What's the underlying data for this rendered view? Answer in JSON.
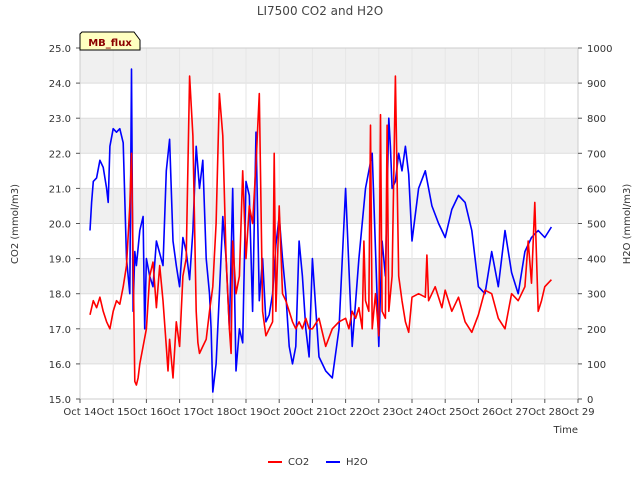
{
  "chart_data": {
    "type": "line",
    "title": "LI7500 CO2 and H2O",
    "xlabel": "Time",
    "ylabel_left": "CO2 (mmol/m3)",
    "ylabel_right": "H2O (mmol/m3)",
    "xlim": [
      0,
      15
    ],
    "ylim_left": [
      15.0,
      25.0
    ],
    "ylim_right": [
      0,
      1000
    ],
    "x_ticks": [
      0,
      1,
      2,
      3,
      4,
      5,
      6,
      7,
      8,
      9,
      10,
      11,
      12,
      13,
      14,
      15
    ],
    "x_tick_labels": [
      "Oct 14",
      "Oct 15",
      "Oct 16",
      "Oct 17",
      "Oct 18",
      "Oct 19",
      "Oct 20",
      "Oct 21",
      "Oct 22",
      "Oct 23",
      "Oct 24",
      "Oct 25",
      "Oct 26",
      "Oct 27",
      "Oct 28",
      "Oct 29"
    ],
    "y_left_ticks": [
      15.0,
      16.0,
      17.0,
      18.0,
      19.0,
      20.0,
      21.0,
      22.0,
      23.0,
      24.0,
      25.0
    ],
    "y_left_tick_labels": [
      "15.0",
      "16.0",
      "17.0",
      "18.0",
      "19.0",
      "20.0",
      "21.0",
      "22.0",
      "23.0",
      "24.0",
      "25.0"
    ],
    "y_right_ticks": [
      0,
      100,
      200,
      300,
      400,
      500,
      600,
      700,
      800,
      900,
      1000
    ],
    "y_right_tick_labels": [
      "0",
      "100",
      "200",
      "300",
      "400",
      "500",
      "600",
      "700",
      "800",
      "900",
      "1000"
    ],
    "grid": true,
    "legend_position": "bottom-center",
    "annotation": "MB_flux",
    "series": [
      {
        "name": "CO2",
        "axis": "left",
        "color": "#ff0000",
        "x": [
          0.3,
          0.4,
          0.5,
          0.6,
          0.7,
          0.8,
          0.9,
          1.0,
          1.1,
          1.2,
          1.3,
          1.4,
          1.5,
          1.55,
          1.6,
          1.65,
          1.7,
          1.75,
          1.8,
          1.9,
          2.0,
          2.1,
          2.2,
          2.3,
          2.4,
          2.5,
          2.6,
          2.65,
          2.7,
          2.8,
          2.9,
          3.0,
          3.1,
          3.2,
          3.3,
          3.4,
          3.5,
          3.55,
          3.6,
          3.7,
          3.8,
          3.9,
          4.0,
          4.1,
          4.2,
          4.3,
          4.4,
          4.5,
          4.55,
          4.6,
          4.7,
          4.8,
          4.9,
          5.0,
          5.1,
          5.2,
          5.3,
          5.4,
          5.5,
          5.6,
          5.7,
          5.8,
          5.85,
          5.9,
          6.0,
          6.1,
          6.2,
          6.3,
          6.4,
          6.5,
          6.6,
          6.7,
          6.8,
          6.9,
          7.0,
          7.2,
          7.4,
          7.6,
          7.8,
          8.0,
          8.1,
          8.2,
          8.3,
          8.4,
          8.5,
          8.55,
          8.6,
          8.7,
          8.75,
          8.8,
          8.9,
          9.0,
          9.05,
          9.1,
          9.2,
          9.25,
          9.3,
          9.4,
          9.5,
          9.6,
          9.7,
          9.8,
          9.9,
          10.0,
          10.2,
          10.4,
          10.45,
          10.5,
          10.7,
          10.9,
          11.0,
          11.2,
          11.4,
          11.6,
          11.8,
          12.0,
          12.2,
          12.4,
          12.6,
          12.8,
          13.0,
          13.2,
          13.4,
          13.5,
          13.6,
          13.7,
          13.8,
          13.9,
          14.0,
          14.2
        ],
        "y": [
          17.4,
          17.8,
          17.6,
          17.9,
          17.5,
          17.2,
          17.0,
          17.5,
          17.8,
          17.7,
          18.2,
          18.8,
          20.5,
          22.0,
          19.0,
          15.5,
          15.4,
          15.6,
          16.0,
          16.5,
          17.0,
          18.5,
          18.9,
          17.6,
          18.8,
          17.8,
          16.5,
          15.8,
          16.7,
          15.6,
          17.2,
          16.5,
          18.5,
          19.0,
          24.2,
          22.5,
          17.5,
          16.6,
          16.3,
          16.5,
          16.7,
          17.5,
          18.2,
          20.0,
          23.7,
          22.5,
          19.0,
          17.0,
          16.3,
          19.5,
          18.0,
          18.5,
          21.5,
          19.0,
          20.5,
          20.0,
          21.7,
          23.7,
          17.5,
          16.8,
          17.0,
          17.2,
          22.0,
          17.5,
          20.5,
          18.0,
          17.8,
          17.5,
          17.2,
          17.0,
          17.2,
          17.0,
          17.3,
          17.0,
          17.0,
          17.3,
          16.5,
          17.0,
          17.2,
          17.3,
          17.0,
          17.5,
          17.3,
          17.6,
          17.0,
          19.5,
          17.8,
          17.5,
          22.8,
          17.0,
          18.0,
          16.8,
          23.1,
          17.5,
          17.3,
          22.8,
          17.5,
          18.5,
          24.2,
          18.5,
          17.8,
          17.2,
          16.9,
          17.9,
          18.0,
          17.9,
          19.1,
          17.8,
          18.2,
          17.6,
          18.1,
          17.5,
          17.9,
          17.2,
          16.9,
          17.4,
          18.1,
          18.0,
          17.3,
          17.0,
          18.0,
          17.8,
          18.2,
          19.5,
          18.3,
          20.6,
          17.5,
          17.8,
          18.2,
          18.4
        ]
      },
      {
        "name": "H2O",
        "axis": "right",
        "color": "#0000ff",
        "x": [
          0.3,
          0.35,
          0.4,
          0.5,
          0.6,
          0.7,
          0.8,
          0.85,
          0.9,
          1.0,
          1.1,
          1.2,
          1.3,
          1.4,
          1.5,
          1.55,
          1.6,
          1.65,
          1.7,
          1.8,
          1.9,
          1.95,
          2.0,
          2.1,
          2.2,
          2.3,
          2.5,
          2.6,
          2.7,
          2.8,
          2.9,
          3.0,
          3.1,
          3.2,
          3.3,
          3.4,
          3.5,
          3.6,
          3.7,
          3.8,
          3.9,
          3.95,
          4.0,
          4.1,
          4.2,
          4.3,
          4.4,
          4.5,
          4.6,
          4.7,
          4.8,
          4.9,
          5.0,
          5.1,
          5.2,
          5.3,
          5.4,
          5.5,
          5.6,
          5.7,
          5.8,
          5.9,
          6.0,
          6.1,
          6.2,
          6.3,
          6.4,
          6.5,
          6.6,
          6.7,
          6.8,
          6.9,
          7.0,
          7.2,
          7.4,
          7.6,
          7.8,
          8.0,
          8.2,
          8.4,
          8.6,
          8.8,
          9.0,
          9.1,
          9.2,
          9.3,
          9.35,
          9.4,
          9.5,
          9.6,
          9.7,
          9.8,
          9.9,
          10.0,
          10.2,
          10.4,
          10.6,
          10.8,
          11.0,
          11.2,
          11.4,
          11.6,
          11.8,
          12.0,
          12.2,
          12.4,
          12.6,
          12.8,
          13.0,
          13.2,
          13.4,
          13.6,
          13.8,
          14.0,
          14.2
        ],
        "y": [
          480,
          560,
          620,
          630,
          680,
          660,
          600,
          560,
          720,
          770,
          760,
          770,
          730,
          400,
          300,
          940,
          250,
          420,
          380,
          480,
          520,
          200,
          400,
          350,
          320,
          450,
          380,
          650,
          740,
          450,
          380,
          320,
          460,
          420,
          340,
          480,
          720,
          600,
          680,
          400,
          300,
          200,
          20,
          100,
          300,
          520,
          400,
          200,
          600,
          80,
          200,
          160,
          620,
          580,
          250,
          760,
          280,
          400,
          220,
          240,
          300,
          440,
          520,
          400,
          300,
          150,
          100,
          150,
          450,
          350,
          200,
          120,
          400,
          120,
          80,
          60,
          200,
          600,
          150,
          400,
          600,
          700,
          150,
          450,
          350,
          800,
          720,
          600,
          620,
          700,
          650,
          720,
          640,
          450,
          600,
          650,
          550,
          500,
          460,
          540,
          580,
          560,
          480,
          320,
          300,
          420,
          320,
          480,
          360,
          300,
          420,
          460,
          480,
          460,
          490
        ]
      }
    ]
  }
}
